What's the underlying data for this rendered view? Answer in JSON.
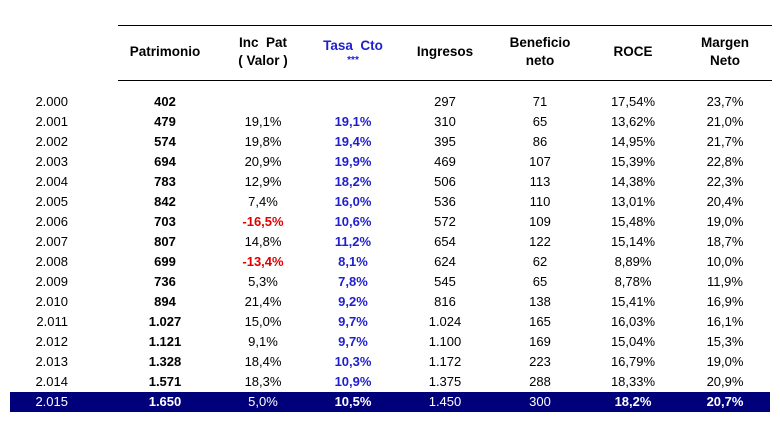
{
  "headers": {
    "patrimonio": "Patrimonio",
    "inc_pat_line1": "Inc  Pat",
    "inc_pat_line2": "( Valor )",
    "tasa_line1": "Tasa  Cto",
    "tasa_line2": "***",
    "ingresos": "Ingresos",
    "beneficio_line1": "Beneficio",
    "beneficio_line2": "neto",
    "roce": "ROCE",
    "margen_line1": "Margen",
    "margen_line2": "Neto"
  },
  "colors": {
    "highlight_row_bg": "#00007a",
    "blue_text": "#1f1fd0",
    "negative_red": "#e00000"
  },
  "rows": [
    {
      "year": "2.000",
      "patrimonio": "402",
      "inc_pat": "",
      "tasa": "",
      "ingresos": "297",
      "beneficio": "71",
      "roce": "17,54%",
      "margen": "23,7%"
    },
    {
      "year": "2.001",
      "patrimonio": "479",
      "inc_pat": "19,1%",
      "tasa": "19,1%",
      "ingresos": "310",
      "beneficio": "65",
      "roce": "13,62%",
      "margen": "21,0%"
    },
    {
      "year": "2.002",
      "patrimonio": "574",
      "inc_pat": "19,8%",
      "tasa": "19,4%",
      "ingresos": "395",
      "beneficio": "86",
      "roce": "14,95%",
      "margen": "21,7%"
    },
    {
      "year": "2.003",
      "patrimonio": "694",
      "inc_pat": "20,9%",
      "tasa": "19,9%",
      "ingresos": "469",
      "beneficio": "107",
      "roce": "15,39%",
      "margen": "22,8%"
    },
    {
      "year": "2.004",
      "patrimonio": "783",
      "inc_pat": "12,9%",
      "tasa": "18,2%",
      "ingresos": "506",
      "beneficio": "113",
      "roce": "14,38%",
      "margen": "22,3%"
    },
    {
      "year": "2.005",
      "patrimonio": "842",
      "inc_pat": "7,4%",
      "tasa": "16,0%",
      "ingresos": "536",
      "beneficio": "110",
      "roce": "13,01%",
      "margen": "20,4%"
    },
    {
      "year": "2.006",
      "patrimonio": "703",
      "inc_pat": "-16,5%",
      "tasa": "10,6%",
      "ingresos": "572",
      "beneficio": "109",
      "roce": "15,48%",
      "margen": "19,0%",
      "negative": true
    },
    {
      "year": "2.007",
      "patrimonio": "807",
      "inc_pat": "14,8%",
      "tasa": "11,2%",
      "ingresos": "654",
      "beneficio": "122",
      "roce": "15,14%",
      "margen": "18,7%"
    },
    {
      "year": "2.008",
      "patrimonio": "699",
      "inc_pat": "-13,4%",
      "tasa": "8,1%",
      "ingresos": "624",
      "beneficio": "62",
      "roce": "8,89%",
      "margen": "10,0%",
      "negative": true
    },
    {
      "year": "2.009",
      "patrimonio": "736",
      "inc_pat": "5,3%",
      "tasa": "7,8%",
      "ingresos": "545",
      "beneficio": "65",
      "roce": "8,78%",
      "margen": "11,9%"
    },
    {
      "year": "2.010",
      "patrimonio": "894",
      "inc_pat": "21,4%",
      "tasa": "9,2%",
      "ingresos": "816",
      "beneficio": "138",
      "roce": "15,41%",
      "margen": "16,9%"
    },
    {
      "year": "2.011",
      "patrimonio": "1.027",
      "inc_pat": "15,0%",
      "tasa": "9,7%",
      "ingresos": "1.024",
      "beneficio": "165",
      "roce": "16,03%",
      "margen": "16,1%"
    },
    {
      "year": "2.012",
      "patrimonio": "1.121",
      "inc_pat": "9,1%",
      "tasa": "9,7%",
      "ingresos": "1.100",
      "beneficio": "169",
      "roce": "15,04%",
      "margen": "15,3%"
    },
    {
      "year": "2.013",
      "patrimonio": "1.328",
      "inc_pat": "18,4%",
      "tasa": "10,3%",
      "ingresos": "1.172",
      "beneficio": "223",
      "roce": "16,79%",
      "margen": "19,0%"
    },
    {
      "year": "2.014",
      "patrimonio": "1.571",
      "inc_pat": "18,3%",
      "tasa": "10,9%",
      "ingresos": "1.375",
      "beneficio": "288",
      "roce": "18,33%",
      "margen": "20,9%"
    },
    {
      "year": "2.015",
      "patrimonio": "1.650",
      "inc_pat": "5,0%",
      "tasa": "10,5%",
      "ingresos": "1.450",
      "beneficio": "300",
      "roce": "18,2%",
      "margen": "20,7%",
      "highlight": true
    }
  ]
}
